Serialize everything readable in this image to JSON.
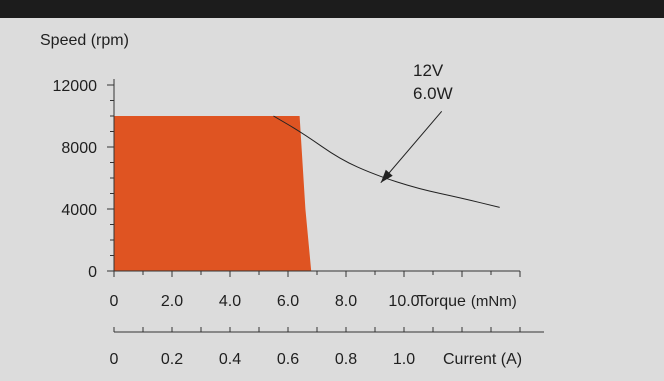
{
  "chart_data": {
    "type": "area",
    "ylabel": "Speed (rpm)",
    "ylim": [
      0,
      12000
    ],
    "yticks": [
      {
        "value": 12000,
        "label": "12000"
      },
      {
        "value": 8000,
        "label": "8000"
      },
      {
        "value": 4000,
        "label": "4000"
      },
      {
        "value": 0,
        "label": "0"
      }
    ],
    "torque_axis": {
      "label_name": "Torque",
      "label_unit": "(mNm)",
      "xlim": [
        0,
        14
      ],
      "ticks": [
        {
          "value": 0,
          "label": "0"
        },
        {
          "value": 2,
          "label": "2.0"
        },
        {
          "value": 4,
          "label": "4.0"
        },
        {
          "value": 6,
          "label": "6.0"
        },
        {
          "value": 8,
          "label": "8.0"
        },
        {
          "value": 10,
          "label": "10.0"
        }
      ]
    },
    "current_axis": {
      "label": "Current (A)",
      "xlim": [
        0,
        1.4
      ],
      "ticks": [
        {
          "value": 0,
          "label": "0"
        },
        {
          "value": 0.2,
          "label": "0.2"
        },
        {
          "value": 0.4,
          "label": "0.4"
        },
        {
          "value": 0.6,
          "label": "0.6"
        },
        {
          "value": 0.8,
          "label": "0.8"
        },
        {
          "value": 1.0,
          "label": "1.0"
        }
      ]
    },
    "operating_region": {
      "color": "#df5422",
      "points": [
        {
          "torque": 0,
          "speed": 0
        },
        {
          "torque": 0,
          "speed": 10000
        },
        {
          "torque": 6.4,
          "speed": 10000
        },
        {
          "torque": 6.6,
          "speed": 4000
        },
        {
          "torque": 6.8,
          "speed": 0
        }
      ]
    },
    "power_curve": {
      "label_line1": "12V",
      "label_line2": "6.0W",
      "points": [
        {
          "torque": 5.5,
          "speed": 10000
        },
        {
          "torque": 6.5,
          "speed": 8900
        },
        {
          "torque": 7.8,
          "speed": 7200
        },
        {
          "torque": 9.0,
          "speed": 6200
        },
        {
          "torque": 10.5,
          "speed": 5300
        },
        {
          "torque": 12.0,
          "speed": 4700
        },
        {
          "torque": 13.3,
          "speed": 4100
        }
      ],
      "arrow_from": {
        "torque": 11.3,
        "speed": 10300
      },
      "arrow_to": {
        "torque": 9.2,
        "speed": 5700
      }
    },
    "colors": {
      "background": "#dcdcdc",
      "frame": "#1c1c1c",
      "axis": "#333333",
      "curve": "#222222"
    }
  }
}
